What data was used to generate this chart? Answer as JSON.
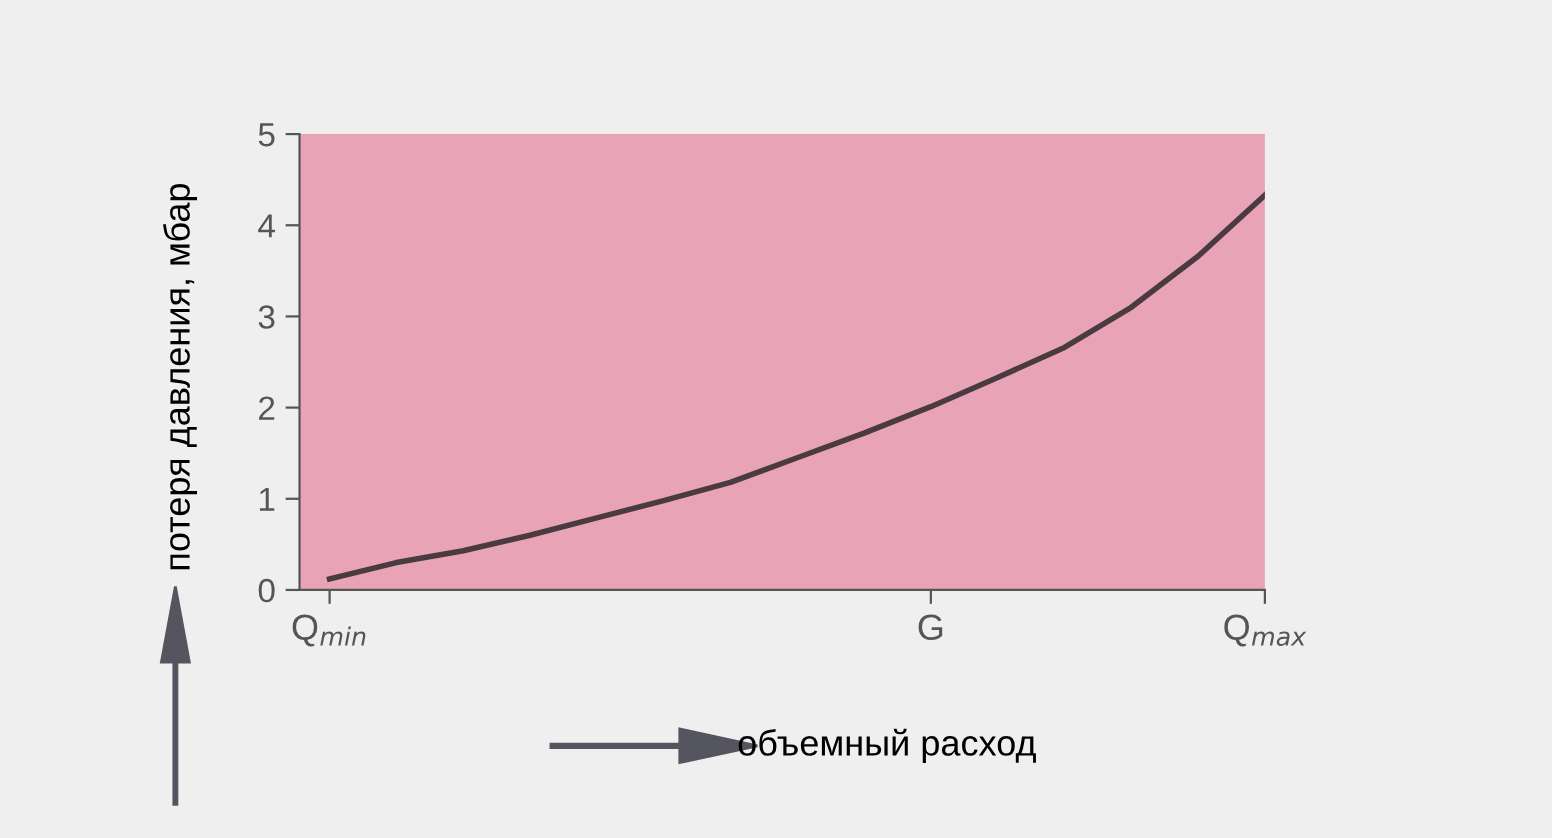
{
  "chart_data": {
    "type": "line",
    "xlabel": "объемный расход",
    "ylabel": "потеря давления, мбар",
    "categories": [
      "Q$_{min}$",
      null,
      null,
      null,
      null,
      null,
      null,
      null,
      null,
      "G",
      null,
      null,
      null,
      null,
      "Q$_{max}$"
    ],
    "series": [
      {
        "color": "#4a3a42",
        "values": [
          0.12,
          0.3,
          0.43,
          0.6,
          0.79,
          0.98,
          1.18,
          1.45,
          1.72,
          2.01,
          2.33,
          2.66,
          3.1,
          3.66,
          4.33
        ]
      }
    ],
    "ylim": [
      0,
      5
    ],
    "yticks": [
      0,
      1,
      2,
      3,
      4,
      5
    ],
    "grid": false,
    "legend": false,
    "marker": "none",
    "line_style": "solid"
  }
}
